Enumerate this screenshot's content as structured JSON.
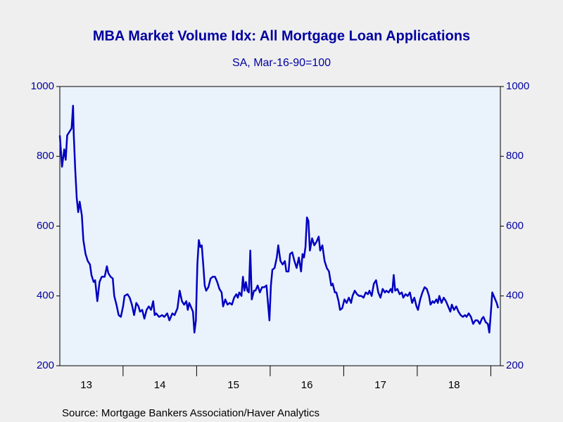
{
  "chart_data": {
    "type": "line",
    "title": "MBA Market Volume Idx: All Mortgage Loan Applications",
    "subtitle": "SA, Mar-16-90=100",
    "source": "Source:  Mortgage Bankers Association/Haver Analytics",
    "xlim": [
      2013.14,
      2019.13
    ],
    "xticks": [
      2014,
      2015,
      2016,
      2017,
      2018,
      2019
    ],
    "xtick_labels": [
      {
        "value": 2013.5,
        "label": "13"
      },
      {
        "value": 2014.5,
        "label": "14"
      },
      {
        "value": 2015.5,
        "label": "15"
      },
      {
        "value": 2016.5,
        "label": "16"
      },
      {
        "value": 2017.5,
        "label": "17"
      },
      {
        "value": 2018.5,
        "label": "18"
      }
    ],
    "ylim": [
      200,
      1000
    ],
    "yticks": [
      200,
      400,
      600,
      800,
      1000
    ],
    "y2lim": [
      200,
      1000
    ],
    "y2ticks": [
      200,
      400,
      600,
      800,
      1000
    ],
    "series": [
      {
        "color": "#0000c0",
        "x": [
          2013.14,
          2013.17,
          2013.2,
          2013.22,
          2013.24,
          2013.27,
          2013.3,
          2013.32,
          2013.33,
          2013.35,
          2013.37,
          2013.39,
          2013.41,
          2013.44,
          2013.46,
          2013.49,
          2013.52,
          2013.55,
          2013.57,
          2013.6,
          2013.62,
          2013.65,
          2013.68,
          2013.71,
          2013.75,
          2013.78,
          2013.8,
          2013.83,
          2013.86,
          2013.88,
          2013.91,
          2013.94,
          2013.97,
          2014.0,
          2014.02,
          2014.06,
          2014.09,
          2014.12,
          2014.15,
          2014.18,
          2014.21,
          2014.23,
          2014.26,
          2014.29,
          2014.32,
          2014.35,
          2014.38,
          2014.41,
          2014.43,
          2014.45,
          2014.49,
          2014.53,
          2014.56,
          2014.6,
          2014.63,
          2014.67,
          2014.7,
          2014.74,
          2014.77,
          2014.8,
          2014.83,
          2014.86,
          2014.88,
          2014.9,
          2014.92,
          2014.95,
          2014.97,
          2014.99,
          2015.01,
          2015.03,
          2015.05,
          2015.07,
          2015.09,
          2015.11,
          2015.13,
          2015.16,
          2015.19,
          2015.22,
          2015.25,
          2015.28,
          2015.31,
          2015.34,
          2015.36,
          2015.39,
          2015.42,
          2015.45,
          2015.48,
          2015.51,
          2015.54,
          2015.56,
          2015.58,
          2015.61,
          2015.63,
          2015.65,
          2015.67,
          2015.69,
          2015.71,
          2015.73,
          2015.75,
          2015.78,
          2015.8,
          2015.83,
          2015.86,
          2015.89,
          2015.92,
          2015.95,
          2015.97,
          2015.99,
          2016.01,
          2016.03,
          2016.06,
          2016.09,
          2016.11,
          2016.14,
          2016.17,
          2016.2,
          2016.22,
          2016.25,
          2016.27,
          2016.3,
          2016.33,
          2016.36,
          2016.39,
          2016.42,
          2016.44,
          2016.46,
          2016.48,
          2016.5,
          2016.52,
          2016.54,
          2016.57,
          2016.6,
          2016.63,
          2016.66,
          2016.68,
          2016.71,
          2016.74,
          2016.77,
          2016.8,
          2016.83,
          2016.85,
          2016.88,
          2016.9,
          2016.93,
          2016.95,
          2016.98,
          2017.01,
          2017.04,
          2017.07,
          2017.1,
          2017.12,
          2017.15,
          2017.18,
          2017.21,
          2017.24,
          2017.27,
          2017.3,
          2017.33,
          2017.35,
          2017.38,
          2017.41,
          2017.44,
          2017.47,
          2017.5,
          2017.53,
          2017.56,
          2017.58,
          2017.61,
          2017.64,
          2017.66,
          2017.68,
          2017.7,
          2017.73,
          2017.76,
          2017.79,
          2017.81,
          2017.84,
          2017.87,
          2017.9,
          2017.93,
          2017.96,
          2017.99,
          2018.01,
          2018.04,
          2018.07,
          2018.1,
          2018.13,
          2018.16,
          2018.18,
          2018.21,
          2018.23,
          2018.26,
          2018.28,
          2018.3,
          2018.33,
          2018.36,
          2018.39,
          2018.42,
          2018.45,
          2018.47,
          2018.5,
          2018.53,
          2018.56,
          2018.59,
          2018.62,
          2018.65,
          2018.67,
          2018.7,
          2018.73,
          2018.76,
          2018.79,
          2018.82,
          2018.85,
          2018.88,
          2018.9,
          2018.93,
          2018.96,
          2018.98,
          2019.0,
          2019.02,
          2019.05,
          2019.08,
          2019.1
        ],
        "values": [
          860,
          770,
          820,
          790,
          860,
          870,
          880,
          945,
          860,
          760,
          680,
          640,
          670,
          630,
          560,
          520,
          500,
          490,
          460,
          440,
          445,
          385,
          440,
          455,
          455,
          485,
          465,
          455,
          450,
          400,
          375,
          345,
          340,
          370,
          400,
          405,
          395,
          375,
          345,
          380,
          370,
          355,
          360,
          335,
          360,
          370,
          360,
          385,
          345,
          350,
          340,
          345,
          340,
          350,
          330,
          350,
          345,
          365,
          415,
          385,
          375,
          385,
          360,
          380,
          370,
          355,
          295,
          330,
          490,
          560,
          540,
          545,
          490,
          430,
          415,
          425,
          450,
          455,
          455,
          440,
          420,
          410,
          370,
          390,
          375,
          380,
          375,
          395,
          405,
          395,
          410,
          400,
          455,
          415,
          440,
          415,
          410,
          530,
          390,
          415,
          415,
          430,
          410,
          425,
          425,
          430,
          380,
          330,
          430,
          475,
          480,
          510,
          545,
          500,
          490,
          500,
          470,
          470,
          520,
          525,
          500,
          480,
          510,
          470,
          520,
          510,
          540,
          625,
          615,
          530,
          565,
          545,
          555,
          570,
          530,
          545,
          500,
          480,
          470,
          430,
          435,
          410,
          410,
          385,
          360,
          365,
          390,
          380,
          395,
          380,
          400,
          415,
          405,
          400,
          400,
          395,
          410,
          405,
          415,
          400,
          435,
          445,
          410,
          395,
          420,
          410,
          415,
          410,
          420,
          410,
          460,
          415,
          420,
          405,
          410,
          395,
          405,
          400,
          410,
          380,
          395,
          370,
          360,
          390,
          410,
          425,
          420,
          400,
          375,
          385,
          380,
          390,
          380,
          400,
          380,
          395,
          385,
          370,
          355,
          375,
          360,
          370,
          355,
          345,
          340,
          345,
          340,
          350,
          340,
          320,
          330,
          330,
          320,
          335,
          340,
          325,
          320,
          295,
          350,
          410,
          395,
          380,
          365
        ]
      }
    ]
  }
}
